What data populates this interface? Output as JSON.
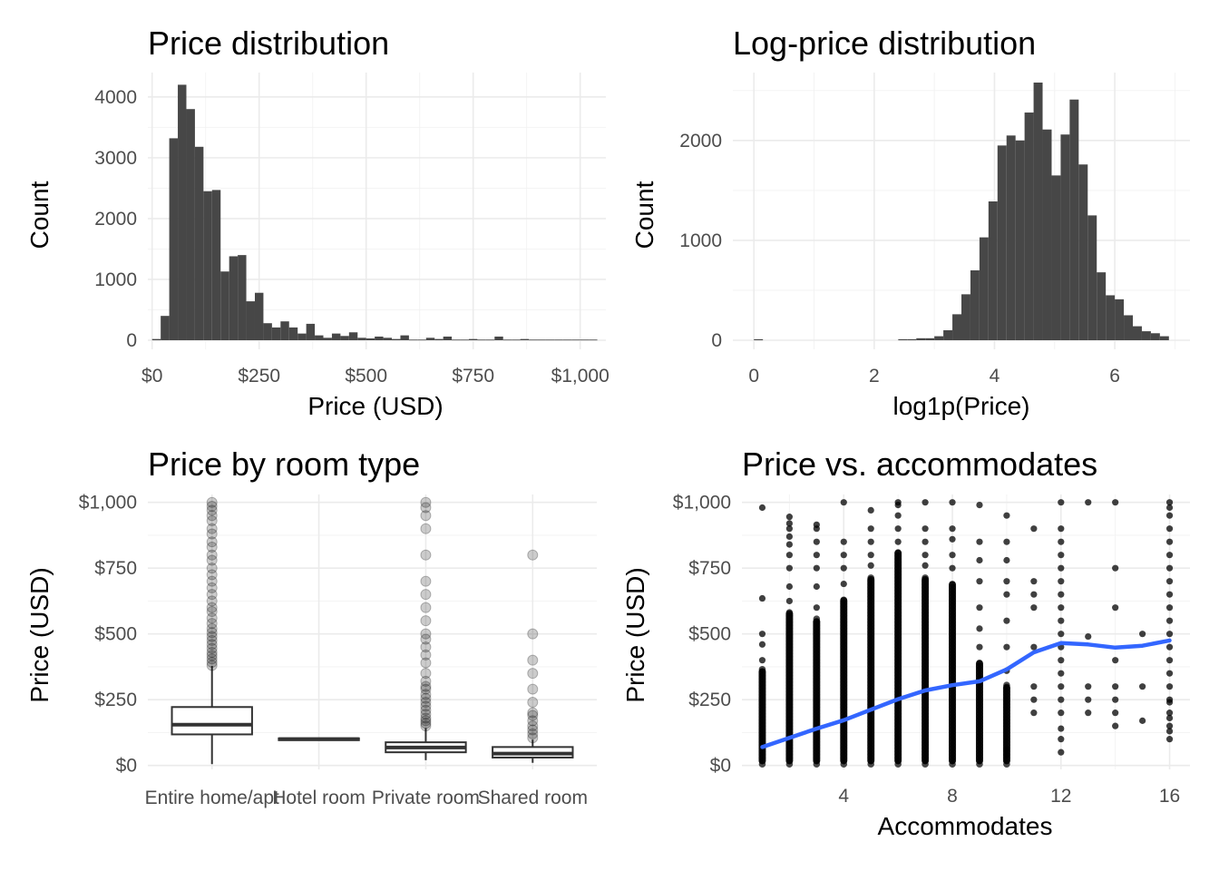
{
  "chart_data": [
    {
      "type": "bar",
      "subtype": "histogram",
      "title": "Price distribution",
      "xlabel": "Price (USD)",
      "ylabel": "Count",
      "xlim": [
        -10,
        1060
      ],
      "ylim": [
        0,
        4400
      ],
      "xticks": [
        0,
        250,
        500,
        750,
        1000
      ],
      "xtick_labels": [
        "$0",
        "$250",
        "$500",
        "$750",
        "$1,000"
      ],
      "yticks": [
        0,
        1000,
        2000,
        3000,
        4000
      ],
      "ytick_labels": [
        "0",
        "1000",
        "2000",
        "3000",
        "4000"
      ],
      "grid": true,
      "bin_width": 20,
      "bins_start": 0,
      "counts": [
        20,
        400,
        3320,
        4200,
        3800,
        3180,
        2450,
        2470,
        1130,
        1380,
        1400,
        640,
        780,
        280,
        210,
        310,
        210,
        110,
        270,
        80,
        40,
        110,
        70,
        130,
        40,
        30,
        60,
        40,
        20,
        80,
        10,
        10,
        40,
        20,
        60,
        10,
        10,
        20,
        10,
        10,
        60,
        10,
        10,
        20,
        10,
        10,
        10,
        10,
        10,
        10,
        10,
        10
      ]
    },
    {
      "type": "bar",
      "subtype": "histogram",
      "title": "Log-price distribution",
      "xlabel": "log1p(Price)",
      "ylabel": "Count",
      "xlim": [
        -0.35,
        7.25
      ],
      "ylim": [
        0,
        2680
      ],
      "xticks": [
        0,
        2,
        4,
        6
      ],
      "xtick_labels": [
        "0",
        "2",
        "4",
        "6"
      ],
      "yticks": [
        0,
        1000,
        2000
      ],
      "ytick_labels": [
        "0",
        "1000",
        "2000"
      ],
      "grid": true,
      "bins": [
        {
          "x": 0.0,
          "count": 10
        },
        {
          "x": 2.4,
          "count": 10
        },
        {
          "x": 2.55,
          "count": 10
        },
        {
          "x": 2.7,
          "count": 20
        },
        {
          "x": 2.85,
          "count": 20
        },
        {
          "x": 3.0,
          "count": 40
        },
        {
          "x": 3.15,
          "count": 100
        },
        {
          "x": 3.3,
          "count": 260
        },
        {
          "x": 3.45,
          "count": 460
        },
        {
          "x": 3.6,
          "count": 700
        },
        {
          "x": 3.75,
          "count": 1030
        },
        {
          "x": 3.9,
          "count": 1390
        },
        {
          "x": 4.05,
          "count": 1950
        },
        {
          "x": 4.2,
          "count": 2050
        },
        {
          "x": 4.35,
          "count": 2000
        },
        {
          "x": 4.5,
          "count": 2280
        },
        {
          "x": 4.65,
          "count": 2580
        },
        {
          "x": 4.8,
          "count": 2110
        },
        {
          "x": 4.95,
          "count": 1650
        },
        {
          "x": 5.1,
          "count": 2060
        },
        {
          "x": 5.25,
          "count": 2410
        },
        {
          "x": 5.4,
          "count": 1760
        },
        {
          "x": 5.55,
          "count": 1250
        },
        {
          "x": 5.7,
          "count": 680
        },
        {
          "x": 5.85,
          "count": 450
        },
        {
          "x": 6.0,
          "count": 410
        },
        {
          "x": 6.15,
          "count": 250
        },
        {
          "x": 6.3,
          "count": 140
        },
        {
          "x": 6.45,
          "count": 90
        },
        {
          "x": 6.6,
          "count": 70
        },
        {
          "x": 6.75,
          "count": 40
        }
      ],
      "bin_width": 0.15
    },
    {
      "type": "boxplot",
      "title": "Price by room type",
      "xlabel": "",
      "ylabel": "Price (USD)",
      "ylim": [
        -15,
        1030
      ],
      "yticks": [
        0,
        250,
        500,
        750,
        1000
      ],
      "ytick_labels": [
        "$0",
        "$250",
        "$500",
        "$750",
        "$1,000"
      ],
      "grid": true,
      "categories": [
        "Entire home/apt",
        "Hotel room",
        "Private room",
        "Shared room"
      ],
      "boxes": [
        {
          "category": "Entire home/apt",
          "min": 5,
          "q1": 118,
          "median": 155,
          "q3": 222,
          "max": 378,
          "outliers": [
            380,
            392,
            405,
            418,
            430,
            445,
            460,
            475,
            490,
            505,
            520,
            540,
            560,
            585,
            600,
            625,
            650,
            675,
            700,
            725,
            750,
            780,
            800,
            830,
            850,
            880,
            900,
            930,
            950,
            970,
            985,
            1000
          ]
        },
        {
          "category": "Hotel room",
          "min": 95,
          "q1": 97,
          "median": 100,
          "q3": 103,
          "max": 105,
          "outliers": []
        },
        {
          "category": "Private room",
          "min": 20,
          "q1": 50,
          "median": 68,
          "q3": 88,
          "max": 142,
          "outliers": [
            150,
            160,
            170,
            180,
            195,
            210,
            225,
            240,
            255,
            270,
            290,
            300,
            320,
            350,
            390,
            420,
            450,
            480,
            500,
            550,
            600,
            650,
            700,
            800,
            900,
            950,
            980,
            1000
          ]
        },
        {
          "category": "Shared room",
          "min": 10,
          "q1": 30,
          "median": 45,
          "q3": 70,
          "max": 98,
          "outliers": [
            105,
            120,
            135,
            150,
            170,
            190,
            200,
            240,
            290,
            350,
            400,
            500,
            800
          ]
        }
      ]
    },
    {
      "type": "scatter",
      "title": "Price vs. accommodates",
      "xlabel": "Accommodates",
      "ylabel": "Price (USD)",
      "xlim": [
        0.25,
        16.75
      ],
      "ylim": [
        -15,
        1030
      ],
      "xticks": [
        4,
        8,
        12,
        16
      ],
      "xtick_labels": [
        "4",
        "8",
        "12",
        "16"
      ],
      "yticks": [
        0,
        250,
        500,
        750,
        1000
      ],
      "ytick_labels": [
        "$0",
        "$250",
        "$500",
        "$750",
        "$1,000"
      ],
      "grid": true,
      "columns": [
        {
          "x": 1,
          "dense_max": 370,
          "extra": [
            400,
            460,
            500,
            635,
            980
          ]
        },
        {
          "x": 2,
          "dense_max": 590,
          "extra": [
            625,
            680,
            750,
            800,
            840,
            870,
            900,
            920,
            945
          ]
        },
        {
          "x": 3,
          "dense_max": 560,
          "extra": [
            600,
            680,
            750,
            800,
            850,
            900,
            915
          ]
        },
        {
          "x": 4,
          "dense_max": 640,
          "extra": [
            690,
            750,
            800,
            850,
            1000
          ]
        },
        {
          "x": 5,
          "dense_max": 720,
          "extra": [
            760,
            800,
            850,
            900,
            970
          ]
        },
        {
          "x": 6,
          "dense_max": 820,
          "extra": [
            850,
            900,
            950,
            990,
            1000
          ]
        },
        {
          "x": 7,
          "dense_max": 720,
          "extra": [
            760,
            800,
            850,
            900,
            1000
          ]
        },
        {
          "x": 8,
          "dense_max": 700,
          "extra": [
            750,
            800,
            860,
            900,
            1000
          ]
        },
        {
          "x": 9,
          "dense_max": 400,
          "extra": [
            450,
            520,
            600,
            700,
            780,
            850,
            990
          ]
        },
        {
          "x": 10,
          "dense_max": 310,
          "extra": [
            40,
            60,
            360,
            450,
            550,
            650,
            700,
            780,
            850,
            950
          ]
        },
        {
          "x": 11,
          "dense_max": 0,
          "extra": [
            200,
            250,
            300,
            450,
            600,
            650,
            700,
            900
          ]
        },
        {
          "x": 12,
          "dense_max": 0,
          "extra": [
            50,
            100,
            140,
            200,
            250,
            300,
            350,
            400,
            450,
            500,
            550,
            600,
            650,
            700,
            750,
            800,
            850,
            900,
            1000
          ]
        },
        {
          "x": 13,
          "dense_max": 0,
          "extra": [
            200,
            250,
            300,
            490,
            1000
          ]
        },
        {
          "x": 14,
          "dense_max": 0,
          "extra": [
            150,
            200,
            250,
            300,
            400,
            600,
            750,
            1000
          ]
        },
        {
          "x": 15,
          "dense_max": 0,
          "extra": [
            170,
            300,
            500
          ]
        },
        {
          "x": 16,
          "dense_max": 0,
          "extra": [
            100,
            130,
            150,
            180,
            200,
            240,
            250,
            300,
            350,
            400,
            450,
            500,
            550,
            600,
            650,
            700,
            750,
            800,
            850,
            900,
            950,
            980,
            1000
          ]
        }
      ],
      "smooth": {
        "color": "#3366ff",
        "x": [
          1,
          2,
          3,
          4,
          5,
          6,
          7,
          8,
          9,
          10,
          11,
          12,
          13,
          14,
          15,
          16
        ],
        "y": [
          70,
          105,
          140,
          172,
          212,
          252,
          285,
          305,
          320,
          365,
          430,
          465,
          460,
          448,
          455,
          475
        ]
      }
    }
  ]
}
